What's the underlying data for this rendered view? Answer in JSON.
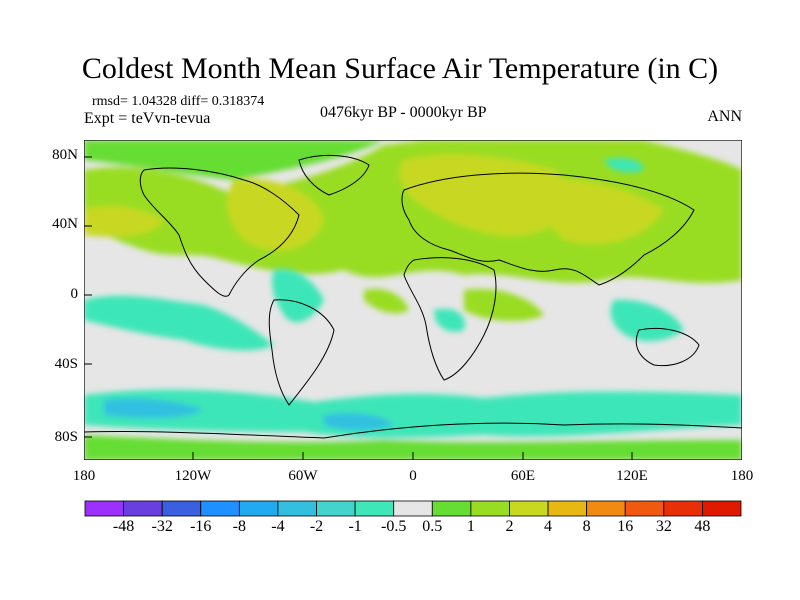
{
  "title": "Coldest Month Mean Surface Air Temperature (in C)",
  "stats": "rmsd= 1.04328 diff= 0.318374",
  "expt": "Expt = teVvn-tevua",
  "period": "0476kyr BP - 0000kyr BP",
  "season": "ANN",
  "lat_ticks": [
    "80N",
    "40N",
    "0",
    "40S",
    "80S"
  ],
  "lon_ticks": [
    "180",
    "120W",
    "60W",
    "0",
    "60E",
    "120E",
    "180"
  ],
  "colorbar": {
    "labels": [
      "-48",
      "-32",
      "-16",
      "-8",
      "-4",
      "-2",
      "-1",
      "-0.5",
      "0.5",
      "1",
      "2",
      "4",
      "8",
      "16",
      "32",
      "48"
    ],
    "colors": [
      "#9b30ff",
      "#6a3fe0",
      "#3a5fe0",
      "#1e90ff",
      "#22aaee",
      "#33c0e0",
      "#44d4cc",
      "#3ee6b8",
      "#e6e6e6",
      "#66dd33",
      "#99dd22",
      "#c8d820",
      "#e8b812",
      "#f08a10",
      "#f05a10",
      "#e83008",
      "#e01a00"
    ]
  },
  "palette": {
    "land_outline": "#000000",
    "neutral": "#e6e6e6",
    "warm_1": "#66dd33",
    "warm_2": "#99dd22",
    "warm_3": "#c8d820",
    "cool_1": "#3ee6b8",
    "cool_2": "#33c0e0",
    "cool_3": "#22aaee"
  }
}
